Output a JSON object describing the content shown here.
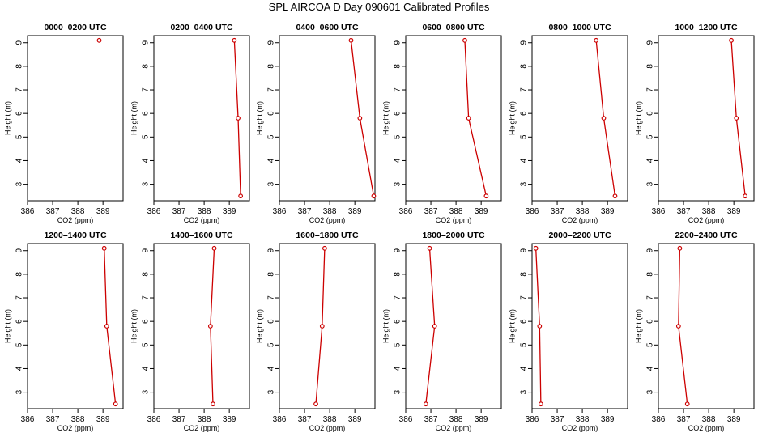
{
  "figure": {
    "title": "SPL AIRCOA D  Day 090601  Calibrated Profiles"
  },
  "chart_data": [
    {
      "type": "line",
      "title": "0000–0200 UTC",
      "xlabel": "CO2 (ppm)",
      "ylabel": "Height (m)",
      "xlim": [
        386,
        389.8
      ],
      "ylim": [
        2.3,
        9.3
      ],
      "xticks": [
        "386",
        "387",
        "388",
        "389"
      ],
      "yticks": [
        "3",
        "4",
        "5",
        "6",
        "7",
        "8",
        "9"
      ],
      "color": "#cc0000",
      "series": [
        {
          "x": [
            388.85
          ],
          "y": [
            9.1
          ]
        }
      ]
    },
    {
      "type": "line",
      "title": "0200–0400 UTC",
      "xlabel": "CO2 (ppm)",
      "ylabel": "Height (m)",
      "xlim": [
        386,
        389.8
      ],
      "ylim": [
        2.3,
        9.3
      ],
      "xticks": [
        "386",
        "387",
        "388",
        "389"
      ],
      "yticks": [
        "3",
        "4",
        "5",
        "6",
        "7",
        "8",
        "9"
      ],
      "color": "#cc0000",
      "series": [
        {
          "x": [
            389.45,
            389.35,
            389.2
          ],
          "y": [
            2.5,
            5.8,
            9.1
          ]
        }
      ]
    },
    {
      "type": "line",
      "title": "0400–0600 UTC",
      "xlabel": "CO2 (ppm)",
      "ylabel": "Height (m)",
      "xlim": [
        386,
        389.8
      ],
      "ylim": [
        2.3,
        9.3
      ],
      "xticks": [
        "386",
        "387",
        "388",
        "389"
      ],
      "yticks": [
        "3",
        "4",
        "5",
        "6",
        "7",
        "8",
        "9"
      ],
      "color": "#cc0000",
      "series": [
        {
          "x": [
            389.75,
            389.2,
            388.85
          ],
          "y": [
            2.5,
            5.8,
            9.1
          ]
        }
      ]
    },
    {
      "type": "line",
      "title": "0600–0800 UTC",
      "xlabel": "CO2 (ppm)",
      "ylabel": "Height (m)",
      "xlim": [
        386,
        389.8
      ],
      "ylim": [
        2.3,
        9.3
      ],
      "xticks": [
        "386",
        "387",
        "388",
        "389"
      ],
      "yticks": [
        "3",
        "4",
        "5",
        "6",
        "7",
        "8",
        "9"
      ],
      "color": "#cc0000",
      "series": [
        {
          "x": [
            389.2,
            388.5,
            388.35
          ],
          "y": [
            2.5,
            5.8,
            9.1
          ]
        }
      ]
    },
    {
      "type": "line",
      "title": "0800–1000 UTC",
      "xlabel": "CO2 (ppm)",
      "ylabel": "Height (m)",
      "xlim": [
        386,
        389.8
      ],
      "ylim": [
        2.3,
        9.3
      ],
      "xticks": [
        "386",
        "387",
        "388",
        "389"
      ],
      "yticks": [
        "3",
        "4",
        "5",
        "6",
        "7",
        "8",
        "9"
      ],
      "color": "#cc0000",
      "series": [
        {
          "x": [
            389.3,
            388.85,
            388.55
          ],
          "y": [
            2.5,
            5.8,
            9.1
          ]
        }
      ]
    },
    {
      "type": "line",
      "title": "1000–1200 UTC",
      "xlabel": "CO2 (ppm)",
      "ylabel": "Height (m)",
      "xlim": [
        386,
        389.8
      ],
      "ylim": [
        2.3,
        9.3
      ],
      "xticks": [
        "386",
        "387",
        "388",
        "389"
      ],
      "yticks": [
        "3",
        "4",
        "5",
        "6",
        "7",
        "8",
        "9"
      ],
      "color": "#cc0000",
      "series": [
        {
          "x": [
            389.45,
            389.1,
            388.9
          ],
          "y": [
            2.5,
            5.8,
            9.1
          ]
        }
      ]
    },
    {
      "type": "line",
      "title": "1200–1400 UTC",
      "xlabel": "CO2 (ppm)",
      "ylabel": "Height (m)",
      "xlim": [
        386,
        389.8
      ],
      "ylim": [
        2.3,
        9.3
      ],
      "xticks": [
        "386",
        "387",
        "388",
        "389"
      ],
      "yticks": [
        "3",
        "4",
        "5",
        "6",
        "7",
        "8",
        "9"
      ],
      "color": "#cc0000",
      "series": [
        {
          "x": [
            389.5,
            389.15,
            389.05
          ],
          "y": [
            2.5,
            5.8,
            9.1
          ]
        }
      ]
    },
    {
      "type": "line",
      "title": "1400–1600 UTC",
      "xlabel": "CO2 (ppm)",
      "ylabel": "Height (m)",
      "xlim": [
        386,
        389.8
      ],
      "ylim": [
        2.3,
        9.3
      ],
      "xticks": [
        "386",
        "387",
        "388",
        "389"
      ],
      "yticks": [
        "3",
        "4",
        "5",
        "6",
        "7",
        "8",
        "9"
      ],
      "color": "#cc0000",
      "series": [
        {
          "x": [
            388.35,
            388.25,
            388.4
          ],
          "y": [
            2.5,
            5.8,
            9.1
          ]
        }
      ]
    },
    {
      "type": "line",
      "title": "1600–1800 UTC",
      "xlabel": "CO2 (ppm)",
      "ylabel": "Height (m)",
      "xlim": [
        386,
        389.8
      ],
      "ylim": [
        2.3,
        9.3
      ],
      "xticks": [
        "386",
        "387",
        "388",
        "389"
      ],
      "yticks": [
        "3",
        "4",
        "5",
        "6",
        "7",
        "8",
        "9"
      ],
      "color": "#cc0000",
      "series": [
        {
          "x": [
            387.45,
            387.7,
            387.8
          ],
          "y": [
            2.5,
            5.8,
            9.1
          ]
        }
      ]
    },
    {
      "type": "line",
      "title": "1800–2000 UTC",
      "xlabel": "CO2 (ppm)",
      "ylabel": "Height (m)",
      "xlim": [
        386,
        389.8
      ],
      "ylim": [
        2.3,
        9.3
      ],
      "xticks": [
        "386",
        "387",
        "388",
        "389"
      ],
      "yticks": [
        "3",
        "4",
        "5",
        "6",
        "7",
        "8",
        "9"
      ],
      "color": "#cc0000",
      "series": [
        {
          "x": [
            386.8,
            387.15,
            386.95
          ],
          "y": [
            2.5,
            5.8,
            9.1
          ]
        }
      ]
    },
    {
      "type": "line",
      "title": "2000–2200 UTC",
      "xlabel": "CO2 (ppm)",
      "ylabel": "Height (m)",
      "xlim": [
        386,
        389.8
      ],
      "ylim": [
        2.3,
        9.3
      ],
      "xticks": [
        "386",
        "387",
        "388",
        "389"
      ],
      "yticks": [
        "3",
        "4",
        "5",
        "6",
        "7",
        "8",
        "9"
      ],
      "color": "#cc0000",
      "series": [
        {
          "x": [
            386.35,
            386.3,
            386.15
          ],
          "y": [
            2.5,
            5.8,
            9.1
          ]
        }
      ]
    },
    {
      "type": "line",
      "title": "2200–2400 UTC",
      "xlabel": "CO2 (ppm)",
      "ylabel": "Height (m)",
      "xlim": [
        386,
        389.8
      ],
      "ylim": [
        2.3,
        9.3
      ],
      "xticks": [
        "386",
        "387",
        "388",
        "389"
      ],
      "yticks": [
        "3",
        "4",
        "5",
        "6",
        "7",
        "8",
        "9"
      ],
      "color": "#cc0000",
      "series": [
        {
          "x": [
            387.15,
            386.8,
            386.85
          ],
          "y": [
            2.5,
            5.8,
            9.1
          ]
        }
      ]
    }
  ]
}
